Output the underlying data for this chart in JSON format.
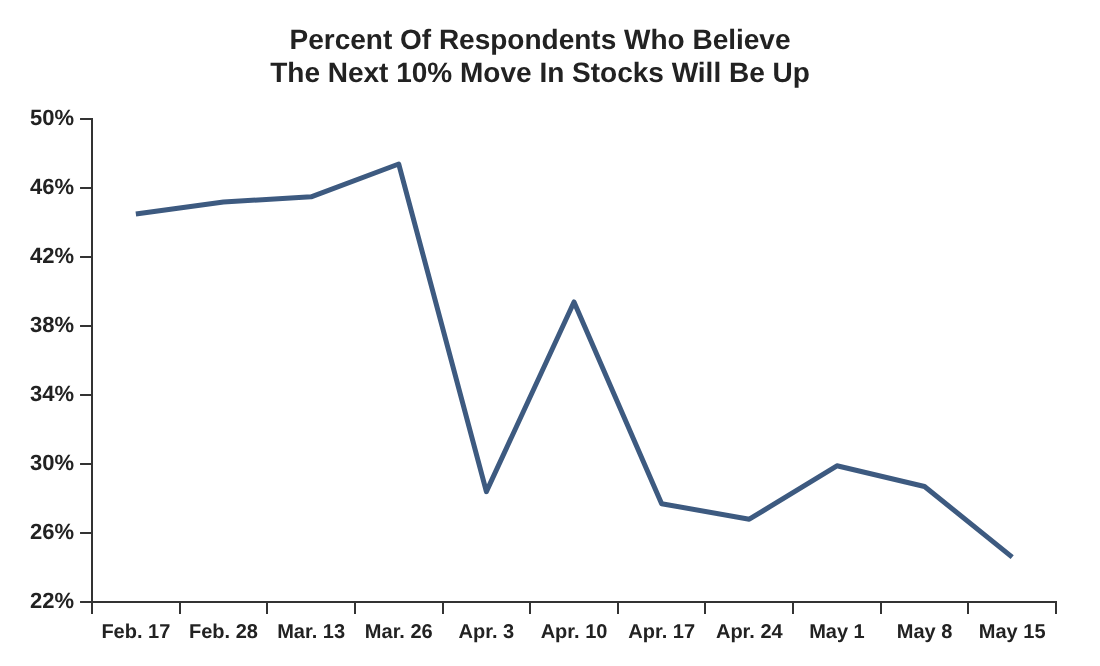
{
  "chart_data": {
    "type": "line",
    "title": "Percent Of Respondents Who Believe\nThe Next 10% Move In Stocks Will Be Up",
    "categories": [
      "Feb. 17",
      "Feb. 28",
      "Mar. 13",
      "Mar. 26",
      "Apr. 3",
      "Apr. 10",
      "Apr. 17",
      "Apr. 24",
      "May 1",
      "May 8",
      "May 15"
    ],
    "series": [
      {
        "color": "#3d5a80",
        "values": [
          44.5,
          45.2,
          45.5,
          47.4,
          28.4,
          39.4,
          27.7,
          26.8,
          29.9,
          28.7,
          24.6
        ]
      }
    ],
    "ylim": [
      22,
      50
    ],
    "yticks": [
      {
        "value": 22,
        "label": "22%"
      },
      {
        "value": 26,
        "label": "26%"
      },
      {
        "value": 30,
        "label": "30%"
      },
      {
        "value": 34,
        "label": "34%"
      },
      {
        "value": 38,
        "label": "38%"
      },
      {
        "value": 42,
        "label": "42%"
      },
      {
        "value": 46,
        "label": "46%"
      },
      {
        "value": 50,
        "label": "50%"
      }
    ],
    "grid": false,
    "legend": false,
    "marker": "none",
    "line_style": "solid"
  }
}
